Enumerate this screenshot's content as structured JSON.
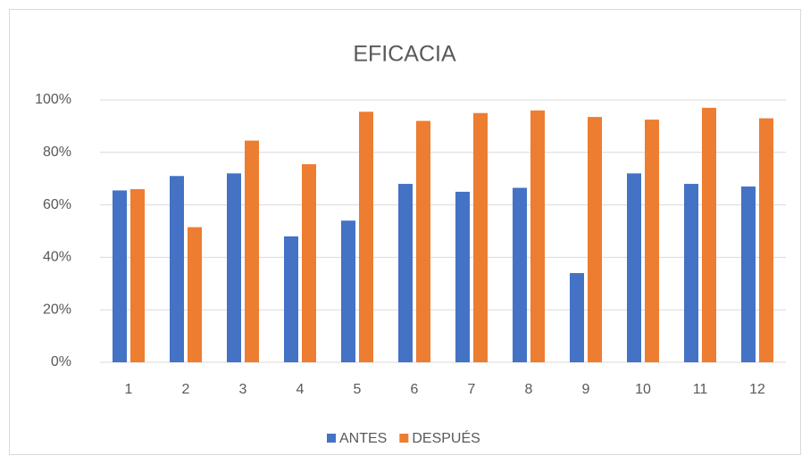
{
  "chart_data": {
    "type": "bar",
    "title": "EFICACIA",
    "categories": [
      "1",
      "2",
      "3",
      "4",
      "5",
      "6",
      "7",
      "8",
      "9",
      "10",
      "11",
      "12"
    ],
    "series": [
      {
        "name": "ANTES",
        "color": "#4472c4",
        "values": [
          65.5,
          71,
          72,
          48,
          54,
          68,
          65,
          66.5,
          34,
          72,
          68,
          67
        ]
      },
      {
        "name": "DESPUÉS",
        "color": "#ed7d31",
        "values": [
          66,
          51.5,
          84.5,
          75.5,
          95.5,
          92,
          95,
          96,
          93.5,
          92.5,
          97,
          93
        ]
      }
    ],
    "ylim": [
      0,
      100
    ],
    "yticks": [
      {
        "value": 0,
        "label": "0%"
      },
      {
        "value": 20,
        "label": "20%"
      },
      {
        "value": 40,
        "label": "40%"
      },
      {
        "value": 60,
        "label": "60%"
      },
      {
        "value": 80,
        "label": "80%"
      },
      {
        "value": 100,
        "label": "100%"
      }
    ],
    "grid": true,
    "legend": "bottom"
  }
}
